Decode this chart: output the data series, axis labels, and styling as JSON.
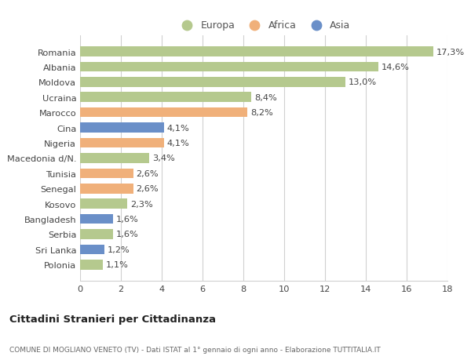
{
  "categories": [
    "Romania",
    "Albania",
    "Moldova",
    "Ucraina",
    "Marocco",
    "Cina",
    "Nigeria",
    "Macedonia d/N.",
    "Tunisia",
    "Senegal",
    "Kosovo",
    "Bangladesh",
    "Serbia",
    "Sri Lanka",
    "Polonia"
  ],
  "values": [
    17.3,
    14.6,
    13.0,
    8.4,
    8.2,
    4.1,
    4.1,
    3.4,
    2.6,
    2.6,
    2.3,
    1.6,
    1.6,
    1.2,
    1.1
  ],
  "labels": [
    "17,3%",
    "14,6%",
    "13,0%",
    "8,4%",
    "8,2%",
    "4,1%",
    "4,1%",
    "3,4%",
    "2,6%",
    "2,6%",
    "2,3%",
    "1,6%",
    "1,6%",
    "1,2%",
    "1,1%"
  ],
  "continents": [
    "Europa",
    "Europa",
    "Europa",
    "Europa",
    "Africa",
    "Asia",
    "Africa",
    "Europa",
    "Africa",
    "Africa",
    "Europa",
    "Asia",
    "Europa",
    "Asia",
    "Europa"
  ],
  "colors": {
    "Europa": "#b5c98e",
    "Africa": "#f0b07a",
    "Asia": "#6a8fc8"
  },
  "legend": [
    "Europa",
    "Africa",
    "Asia"
  ],
  "legend_colors": [
    "#b5c98e",
    "#f0b07a",
    "#6a8fc8"
  ],
  "xlim": [
    0,
    18
  ],
  "xticks": [
    0,
    2,
    4,
    6,
    8,
    10,
    12,
    14,
    16,
    18
  ],
  "title": "Cittadini Stranieri per Cittadinanza",
  "subtitle": "COMUNE DI MOGLIANO VENETO (TV) - Dati ISTAT al 1° gennaio di ogni anno - Elaborazione TUTTITALIA.IT",
  "background_color": "#ffffff",
  "grid_color": "#d0d0d0"
}
